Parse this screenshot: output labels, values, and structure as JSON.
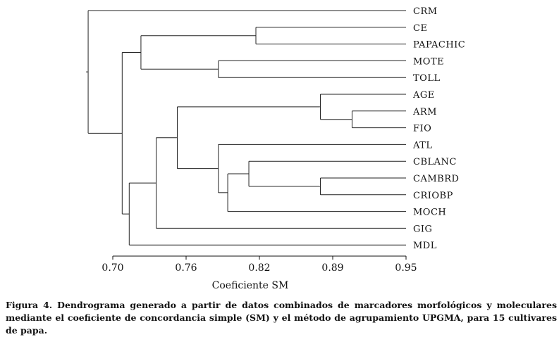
{
  "chart_data": {
    "type": "dendrogram",
    "xlabel": "Coeficiente SM",
    "xlim": [
      0.7,
      0.95
    ],
    "ticks": [
      "0.70",
      "0.76",
      "0.82",
      "0.89",
      "0.95"
    ],
    "leaves": [
      "CRM",
      "CE",
      "PAPACHIC",
      "MOTE",
      "TOLL",
      "AGE",
      "ARM",
      "FIO",
      "ATL",
      "CBLANC",
      "CAMBRD",
      "CRIOBP",
      "MOCH",
      "GIG",
      "MDL"
    ],
    "merges": [
      {
        "id": "n1",
        "children": [
          "ARM",
          "FIO"
        ],
        "height": 0.904
      },
      {
        "id": "n2",
        "children": [
          "CAMBRD",
          "CRIOBP"
        ],
        "height": 0.877
      },
      {
        "id": "n3",
        "children": [
          "AGE",
          "n1"
        ],
        "height": 0.877
      },
      {
        "id": "n4",
        "children": [
          "CE",
          "PAPACHIC"
        ],
        "height": 0.822
      },
      {
        "id": "n5",
        "children": [
          "CBLANC",
          "n2"
        ],
        "height": 0.816
      },
      {
        "id": "n6",
        "children": [
          "n5",
          "MOCH"
        ],
        "height": 0.798
      },
      {
        "id": "n7",
        "children": [
          "MOTE",
          "TOLL"
        ],
        "height": 0.79
      },
      {
        "id": "n8",
        "children": [
          "ATL",
          "n6"
        ],
        "height": 0.79
      },
      {
        "id": "n9",
        "children": [
          "n3",
          "n8"
        ],
        "height": 0.755
      },
      {
        "id": "n10",
        "children": [
          "n9",
          "GIG"
        ],
        "height": 0.737
      },
      {
        "id": "n11",
        "children": [
          "n4",
          "n7"
        ],
        "height": 0.724
      },
      {
        "id": "n12",
        "children": [
          "n10",
          "MDL"
        ],
        "height": 0.714
      },
      {
        "id": "n13",
        "children": [
          "n11",
          "n12"
        ],
        "height": 0.708
      },
      {
        "id": "n14",
        "children": [
          "CRM",
          "n13"
        ],
        "height": 0.679
      }
    ]
  },
  "caption": "Figura 4. Dendrograma generado a partir de datos combinados de marcadores morfológicos y moleculares mediante el coeficiente de concordancia simple (SM) y el método de agrupamiento UPGMA, para 15 cultivares de papa."
}
